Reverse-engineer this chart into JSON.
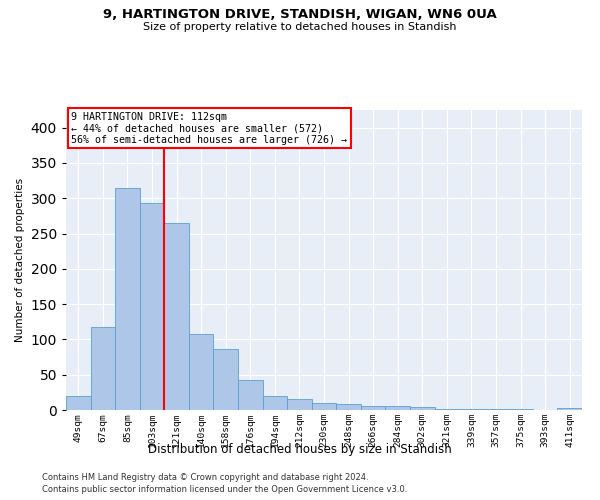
{
  "title1": "9, HARTINGTON DRIVE, STANDISH, WIGAN, WN6 0UA",
  "title2": "Size of property relative to detached houses in Standish",
  "xlabel": "Distribution of detached houses by size in Standish",
  "ylabel": "Number of detached properties",
  "categories": [
    "49sqm",
    "67sqm",
    "85sqm",
    "103sqm",
    "121sqm",
    "140sqm",
    "158sqm",
    "176sqm",
    "194sqm",
    "212sqm",
    "230sqm",
    "248sqm",
    "266sqm",
    "284sqm",
    "302sqm",
    "321sqm",
    "339sqm",
    "357sqm",
    "375sqm",
    "393sqm",
    "411sqm"
  ],
  "values": [
    20,
    118,
    315,
    293,
    265,
    108,
    87,
    43,
    20,
    15,
    10,
    8,
    6,
    5,
    4,
    2,
    1,
    1,
    1,
    0,
    3
  ],
  "bar_color": "#aec6e8",
  "bar_edge_color": "#5a9fd4",
  "vline_x": 3.5,
  "vline_color": "red",
  "annotation_title": "9 HARTINGTON DRIVE: 112sqm",
  "annotation_line1": "← 44% of detached houses are smaller (572)",
  "annotation_line2": "56% of semi-detached houses are larger (726) →",
  "annotation_box_color": "white",
  "annotation_box_edge": "red",
  "ylim": [
    0,
    425
  ],
  "yticks": [
    0,
    50,
    100,
    150,
    200,
    250,
    300,
    350,
    400
  ],
  "background_color": "#e8eef8",
  "footer1": "Contains HM Land Registry data © Crown copyright and database right 2024.",
  "footer2": "Contains public sector information licensed under the Open Government Licence v3.0."
}
